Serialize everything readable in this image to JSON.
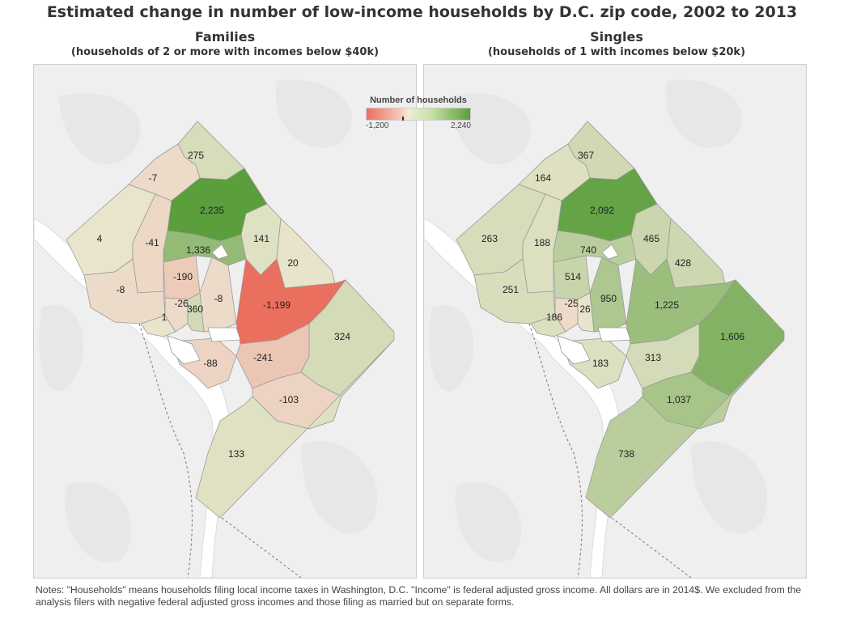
{
  "title": "Estimated change in number of low-income households by D.C. zip code, 2002 to 2013",
  "legend": {
    "title": "Number of households",
    "min_label": "-1,200",
    "max_label": "2,240"
  },
  "colors": {
    "low": "#ea6f5e",
    "mid": "#eddfca",
    "high": "#5b9e3c",
    "background": "#efefef"
  },
  "families": {
    "title": "Families",
    "subtitle": "(households of 2 or more with incomes below $40k)",
    "regions": [
      {
        "label": "275",
        "value": 275
      },
      {
        "label": "-7",
        "value": -7
      },
      {
        "label": "2,235",
        "value": 2235
      },
      {
        "label": "4",
        "value": 4
      },
      {
        "label": "-41",
        "value": -41
      },
      {
        "label": "1,336",
        "value": 1336
      },
      {
        "label": "141",
        "value": 141
      },
      {
        "label": "20",
        "value": 20
      },
      {
        "label": "-8",
        "value": -8
      },
      {
        "label": "-190",
        "value": -190
      },
      {
        "label": "-8",
        "value": -8
      },
      {
        "label": "-1,199",
        "value": -1199
      },
      {
        "label": "-26",
        "value": -26
      },
      {
        "label": "360",
        "value": 360
      },
      {
        "label": "1",
        "value": 1
      },
      {
        "label": "324",
        "value": 324
      },
      {
        "label": "-88",
        "value": -88
      },
      {
        "label": "-241",
        "value": -241
      },
      {
        "label": "-103",
        "value": -103
      },
      {
        "label": "133",
        "value": 133
      }
    ]
  },
  "singles": {
    "title": "Singles",
    "subtitle": "(households of 1 with incomes below $20k)",
    "regions": [
      {
        "label": "367",
        "value": 367
      },
      {
        "label": "164",
        "value": 164
      },
      {
        "label": "2,092",
        "value": 2092
      },
      {
        "label": "263",
        "value": 263
      },
      {
        "label": "188",
        "value": 188
      },
      {
        "label": "740",
        "value": 740
      },
      {
        "label": "465",
        "value": 465
      },
      {
        "label": "428",
        "value": 428
      },
      {
        "label": "251",
        "value": 251
      },
      {
        "label": "514",
        "value": 514
      },
      {
        "label": "950",
        "value": 950
      },
      {
        "label": "1,225",
        "value": 1225
      },
      {
        "label": "-25",
        "value": -25
      },
      {
        "label": "26",
        "value": 26
      },
      {
        "label": "186",
        "value": 186
      },
      {
        "label": "1,606",
        "value": 1606
      },
      {
        "label": "183",
        "value": 183
      },
      {
        "label": "313",
        "value": 313
      },
      {
        "label": "1,037",
        "value": 1037
      },
      {
        "label": "738",
        "value": 738
      }
    ]
  },
  "notes": "Notes: \"Households\" means households filing local income taxes in Washington, D.C. \"Income\" is federal adjusted gross income. All dollars are in 2014$. We excluded from the analysis filers with negative federal adjusted gross incomes and those filing as married but on separate forms."
}
